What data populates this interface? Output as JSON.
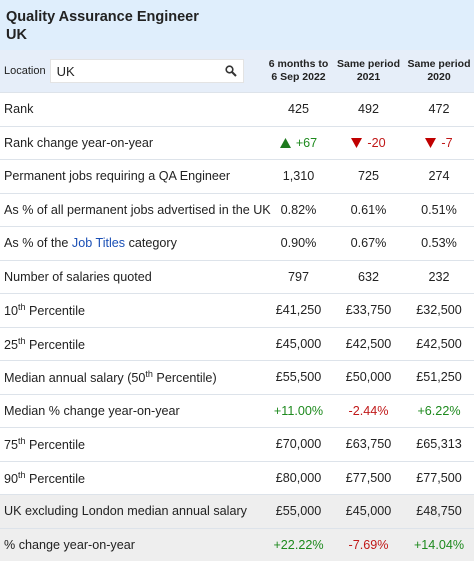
{
  "header": {
    "title": "Quality Assurance Engineer",
    "subtitle": "UK"
  },
  "table": {
    "location_label": "Location",
    "location_value": "UK",
    "columns": [
      [
        "6 months to",
        "6 Sep 2022"
      ],
      [
        "Same period",
        "2021"
      ],
      [
        "Same period",
        "2020"
      ]
    ],
    "rows": [
      {
        "label": [
          {
            "text": "Rank"
          }
        ],
        "cells": [
          "425",
          "492",
          "472"
        ]
      },
      {
        "label": [
          {
            "text": "Rank change year-on-year"
          }
        ],
        "cells": [
          "+67",
          "-20",
          "-7"
        ],
        "arrows": true
      },
      {
        "label": [
          {
            "text": "Permanent jobs requiring a QA Engineer"
          }
        ],
        "cells": [
          "1,310",
          "725",
          "274"
        ]
      },
      {
        "label": [
          {
            "text": "As % of all permanent jobs advertised in the UK"
          }
        ],
        "cells": [
          "0.82%",
          "0.61%",
          "0.51%"
        ]
      },
      {
        "label": [
          {
            "text": "As % of the "
          },
          {
            "link": "Job Titles"
          },
          {
            "text": " category"
          }
        ],
        "cells": [
          "0.90%",
          "0.67%",
          "0.53%"
        ]
      },
      {
        "label": [
          {
            "text": "Number of salaries quoted"
          }
        ],
        "cells": [
          "797",
          "632",
          "232"
        ]
      },
      {
        "label": [
          {
            "text": "10"
          },
          {
            "sup": "th"
          },
          {
            "text": " Percentile"
          }
        ],
        "cells": [
          "£41,250",
          "£33,750",
          "£32,500"
        ]
      },
      {
        "label": [
          {
            "text": "25"
          },
          {
            "sup": "th"
          },
          {
            "text": " Percentile"
          }
        ],
        "cells": [
          "£45,000",
          "£42,500",
          "£42,500"
        ]
      },
      {
        "label": [
          {
            "text": "Median annual salary (50"
          },
          {
            "sup": "th"
          },
          {
            "text": " Percentile)"
          }
        ],
        "cells": [
          "£55,500",
          "£50,000",
          "£51,250"
        ]
      },
      {
        "label": [
          {
            "text": "Median % change year-on-year"
          }
        ],
        "cells": [
          "+11.00%",
          "-2.44%",
          "+6.22%"
        ],
        "colored": true
      },
      {
        "label": [
          {
            "text": "75"
          },
          {
            "sup": "th"
          },
          {
            "text": " Percentile"
          }
        ],
        "cells": [
          "£70,000",
          "£63,750",
          "£65,313"
        ]
      },
      {
        "label": [
          {
            "text": "90"
          },
          {
            "sup": "th"
          },
          {
            "text": " Percentile"
          }
        ],
        "cells": [
          "£80,000",
          "£77,500",
          "£77,500"
        ]
      },
      {
        "label": [
          {
            "text": "UK excluding London median annual salary"
          }
        ],
        "cells": [
          "£55,000",
          "£45,000",
          "£48,750"
        ]
      },
      {
        "label": [
          {
            "text": "% change year-on-year"
          }
        ],
        "cells": [
          "+22.22%",
          "-7.69%",
          "+14.04%"
        ],
        "colored": true
      }
    ]
  }
}
